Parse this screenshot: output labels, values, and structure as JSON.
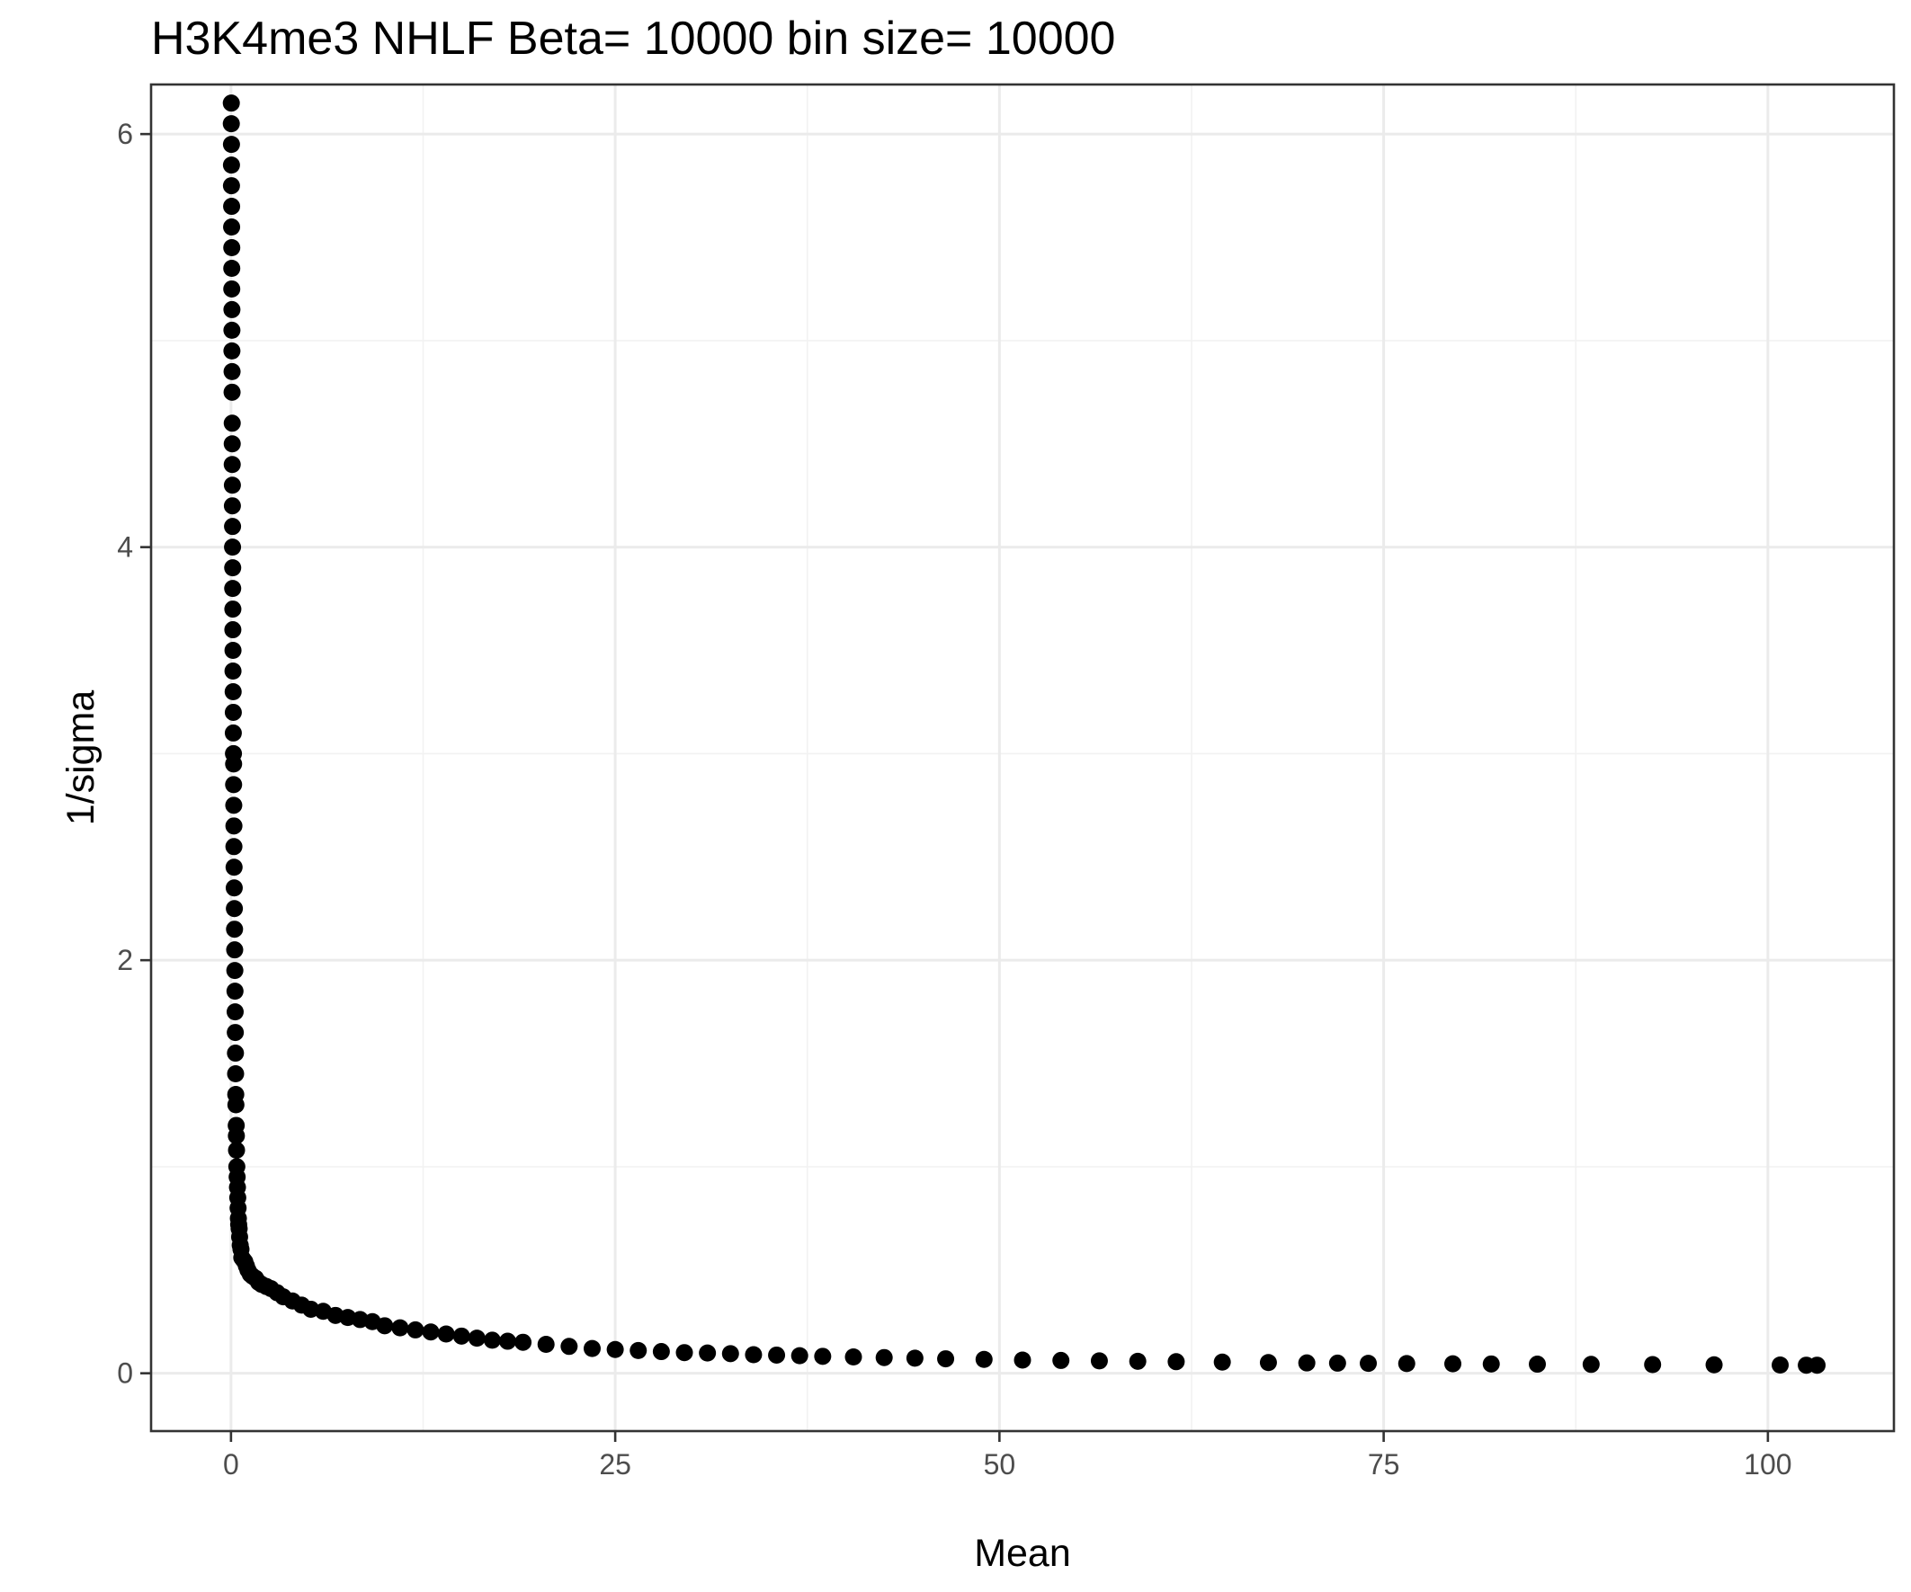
{
  "chart_data": {
    "type": "scatter",
    "title": "H3K4me3 NHLF  Beta=  10000  bin size=  10000",
    "xlabel": "Mean",
    "ylabel": "1/sigma",
    "xlim": [
      -5.2,
      108.2
    ],
    "ylim": [
      -0.28,
      6.24
    ],
    "x_ticks": [
      0,
      25,
      50,
      75,
      100
    ],
    "x_tick_labels": [
      "0",
      "25",
      "50",
      "75",
      "100"
    ],
    "y_ticks": [
      0,
      2,
      4,
      6
    ],
    "y_tick_labels": [
      "0",
      "2",
      "4",
      "6"
    ],
    "grid": true,
    "legend": "none",
    "point_color": "#000000",
    "series": [
      {
        "x": [
          0.02,
          0.02,
          0.03,
          0.03,
          0.03,
          0.04,
          0.04,
          0.05,
          0.05,
          0.05,
          0.06,
          0.06,
          0.06,
          0.07,
          0.07,
          0.08,
          0.08,
          0.08,
          0.09,
          0.09,
          0.1,
          0.1,
          0.11,
          0.11,
          0.12,
          0.12,
          0.13,
          0.13,
          0.14,
          0.15,
          0.15,
          0.16,
          0.17,
          0.17,
          0.18,
          0.19,
          0.19,
          0.2,
          0.21,
          0.22,
          0.23,
          0.24,
          0.25,
          0.26,
          0.27,
          0.28,
          0.29,
          0.3,
          0.31,
          0.32,
          0.34,
          0.35,
          0.36,
          0.38,
          0.4,
          0.42,
          0.44,
          0.46,
          0.48,
          0.5,
          0.53,
          0.56,
          0.6,
          0.65,
          0.7,
          0.8,
          0.9,
          1.0,
          1.1,
          1.25,
          1.4,
          1.6,
          1.8,
          2.0,
          2.3,
          2.6,
          3.0,
          3.4,
          4.0,
          4.6,
          5.2,
          6.0,
          6.8,
          7.6,
          8.4,
          9.2,
          10.0,
          11.0,
          12.0,
          13.0,
          14.0,
          15.0,
          16.0,
          17.0,
          18.0,
          19.0,
          20.5,
          22.0,
          23.5,
          25.0,
          26.5,
          28.0,
          29.5,
          31.0,
          32.5,
          34.0,
          35.5,
          37.0,
          38.5,
          40.5,
          42.5,
          44.5,
          46.5,
          49.0,
          51.5,
          54.0,
          56.5,
          59.0,
          61.5,
          64.5,
          67.5,
          70.0,
          72.0,
          74.0,
          76.5,
          79.5,
          82.0,
          85.0,
          88.5,
          92.5,
          96.5,
          100.8,
          102.5,
          103.2
        ],
        "y": [
          6.15,
          6.05,
          5.95,
          5.85,
          5.75,
          5.65,
          5.55,
          5.45,
          5.35,
          5.25,
          5.15,
          5.05,
          4.95,
          4.85,
          4.75,
          4.6,
          4.5,
          4.4,
          4.3,
          4.2,
          4.1,
          4.0,
          3.9,
          3.8,
          3.7,
          3.6,
          3.5,
          3.4,
          3.3,
          3.2,
          3.1,
          3.0,
          2.95,
          2.85,
          2.75,
          2.65,
          2.55,
          2.45,
          2.35,
          2.25,
          2.15,
          2.05,
          1.95,
          1.85,
          1.75,
          1.65,
          1.55,
          1.45,
          1.35,
          1.3,
          1.2,
          1.15,
          1.08,
          1.0,
          0.95,
          0.9,
          0.85,
          0.8,
          0.75,
          0.72,
          0.7,
          0.66,
          0.62,
          0.6,
          0.56,
          0.55,
          0.54,
          0.52,
          0.5,
          0.48,
          0.47,
          0.46,
          0.44,
          0.43,
          0.42,
          0.41,
          0.39,
          0.37,
          0.35,
          0.33,
          0.31,
          0.3,
          0.28,
          0.27,
          0.26,
          0.25,
          0.23,
          0.22,
          0.21,
          0.2,
          0.19,
          0.18,
          0.17,
          0.16,
          0.155,
          0.15,
          0.14,
          0.13,
          0.12,
          0.115,
          0.11,
          0.105,
          0.1,
          0.098,
          0.095,
          0.09,
          0.088,
          0.085,
          0.082,
          0.079,
          0.076,
          0.073,
          0.07,
          0.067,
          0.064,
          0.062,
          0.06,
          0.058,
          0.056,
          0.054,
          0.052,
          0.05,
          0.049,
          0.048,
          0.047,
          0.046,
          0.045,
          0.044,
          0.043,
          0.042,
          0.041,
          0.04,
          0.039,
          0.039
        ]
      }
    ]
  }
}
